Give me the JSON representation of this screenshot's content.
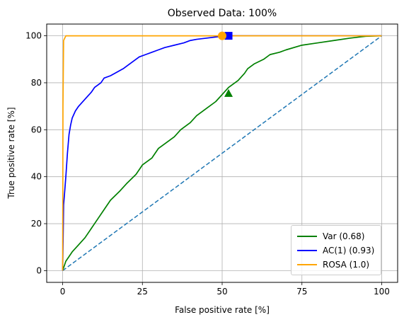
{
  "chart_data": {
    "type": "line",
    "title": "Observed Data: 100%",
    "xlabel": "False positive rate [%]",
    "ylabel": "True positive rate [%]",
    "xlim": [
      -5,
      105
    ],
    "ylim": [
      -5,
      105
    ],
    "x_ticks": [
      0,
      25,
      50,
      75,
      100
    ],
    "y_ticks": [
      0,
      20,
      40,
      60,
      80,
      100
    ],
    "grid": true,
    "legend_placement": "lower-right",
    "diagonal": {
      "x": [
        0,
        100
      ],
      "y": [
        0,
        100
      ],
      "color": "#1f77b4",
      "style": "dashed"
    },
    "series": [
      {
        "name": "Var (0.68)",
        "color": "#008000",
        "x": [
          0,
          0.5,
          1,
          2,
          3,
          5,
          7,
          10,
          13,
          15,
          18,
          20,
          23,
          25,
          28,
          30,
          33,
          35,
          37,
          40,
          42,
          45,
          48,
          50,
          52,
          55,
          57,
          58,
          60,
          63,
          65,
          68,
          70,
          75,
          80,
          85,
          90,
          95,
          100
        ],
        "y": [
          0,
          2,
          4,
          6,
          8,
          11,
          14,
          20,
          26,
          30,
          34,
          37,
          41,
          45,
          48,
          52,
          55,
          57,
          60,
          63,
          66,
          69,
          72,
          75,
          78,
          81,
          84,
          86,
          88,
          90,
          92,
          93,
          94,
          96,
          97,
          98,
          99,
          99.8,
          100
        ],
        "marker": {
          "shape": "triangle",
          "x": 52,
          "y": 75.5
        }
      },
      {
        "name": "AC(1) (0.93)",
        "color": "#0000ff",
        "x": [
          0,
          0.3,
          0.6,
          1,
          1.5,
          2,
          2.5,
          3,
          4,
          5,
          6,
          7,
          8,
          9,
          10,
          12,
          13,
          15,
          17,
          19,
          20,
          22,
          24,
          26,
          28,
          30,
          32,
          35,
          38,
          40,
          42,
          45,
          48,
          50,
          52,
          55,
          60,
          70,
          80,
          100
        ],
        "y": [
          0,
          28,
          33,
          40,
          50,
          58,
          62,
          65,
          68,
          70,
          71.5,
          73,
          74.5,
          76,
          78,
          80,
          82,
          83,
          84.5,
          86,
          87,
          89,
          91,
          92,
          93,
          94,
          95,
          96,
          97,
          98,
          98.5,
          99,
          99.5,
          99.8,
          100,
          100,
          100,
          100,
          100,
          100
        ],
        "marker": {
          "shape": "square",
          "x": 52,
          "y": 100
        }
      },
      {
        "name": "ROSA (1.0)",
        "color": "#ffa500",
        "x": [
          0,
          0.1,
          0.3,
          1,
          100
        ],
        "y": [
          0,
          70,
          98,
          100,
          100
        ],
        "marker": {
          "shape": "circle",
          "x": 50,
          "y": 100
        }
      }
    ]
  }
}
